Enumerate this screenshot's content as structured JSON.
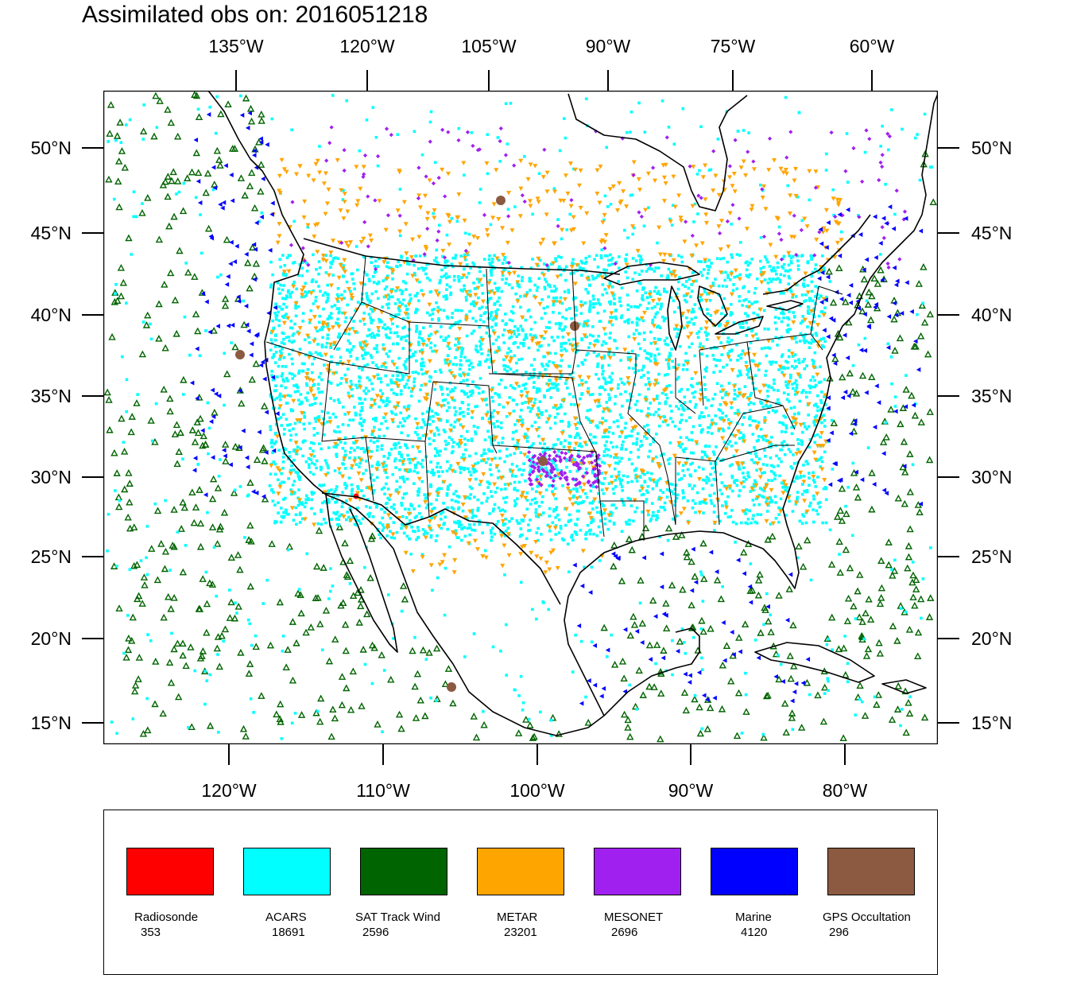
{
  "title": "Assimilated obs on: 2016051218",
  "top_lon_labels": [
    "135°W",
    "120°W",
    "105°W",
    "90°W",
    "75°W",
    "60°W"
  ],
  "bottom_lon_labels": [
    "120°W",
    "110°W",
    "100°W",
    "90°W",
    "80°W"
  ],
  "lat_labels": [
    "50°N",
    "45°N",
    "40°N",
    "35°N",
    "30°N",
    "25°N",
    "20°N",
    "15°N"
  ],
  "legend": [
    {
      "name": "Radiosonde",
      "count": "353",
      "color": "#ff0000",
      "icon": "filled-dot-marker"
    },
    {
      "name": "ACARS",
      "count": "18691",
      "color": "#00ffff",
      "icon": "square-dot-marker"
    },
    {
      "name": "SAT Track Wind",
      "count": "2596",
      "color": "#006400",
      "icon": "hollow-triangle-marker"
    },
    {
      "name": "METAR",
      "count": "23201",
      "color": "#ffa500",
      "icon": "down-triangle-marker"
    },
    {
      "name": "MESONET",
      "count": "2696",
      "color": "#a020f0",
      "icon": "diamond-marker"
    },
    {
      "name": "Marine",
      "count": "4120",
      "color": "#0000ff",
      "icon": "left-triangle-marker"
    },
    {
      "name": "GPS Occultation",
      "count": "296",
      "color": "#8b5a40",
      "icon": "blob-marker"
    }
  ]
}
